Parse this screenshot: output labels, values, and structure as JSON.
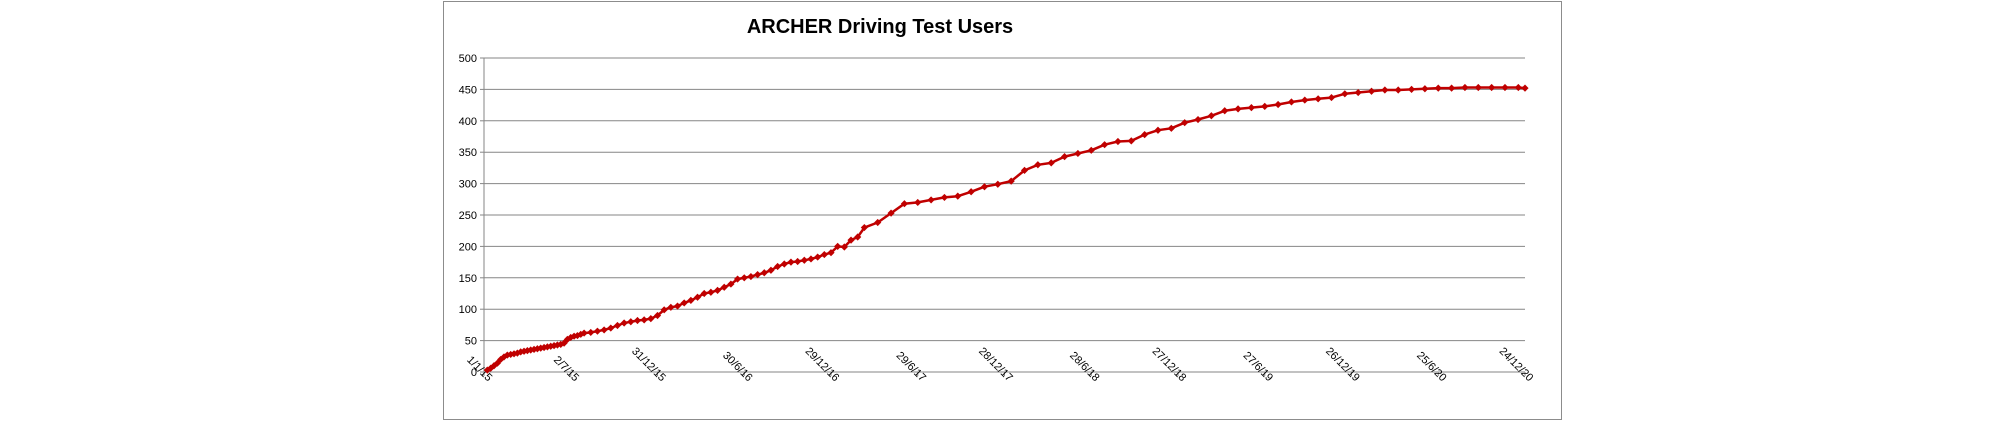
{
  "chart_data": {
    "type": "line",
    "title": "ARCHER Driving Test Users",
    "xlabel": "",
    "ylabel": "",
    "ylim": [
      0,
      500
    ],
    "yticks": [
      0,
      50,
      100,
      150,
      200,
      250,
      300,
      350,
      400,
      450,
      500
    ],
    "xlim": [
      "2015-01-01",
      "2020-12-24"
    ],
    "xtick_labels": [
      "1/1/15",
      "2/7/15",
      "31/12/15",
      "30/6/16",
      "29/12/16",
      "29/6/17",
      "28/12/17",
      "28/6/18",
      "27/12/18",
      "27/6/19",
      "26/12/19",
      "25/6/20",
      "24/12/20"
    ],
    "xtick_dates": [
      "2015-01-01",
      "2015-07-02",
      "2015-12-31",
      "2016-06-30",
      "2016-12-29",
      "2017-06-29",
      "2017-12-28",
      "2018-06-28",
      "2018-12-27",
      "2019-06-27",
      "2019-12-26",
      "2020-06-25",
      "2020-12-24"
    ],
    "grid": true,
    "legend": "none",
    "series_color": "#c00000",
    "series": [
      {
        "x": [
          "2015-01-08",
          "2015-01-15",
          "2015-01-22",
          "2015-01-29",
          "2015-02-05",
          "2015-02-12",
          "2015-02-19",
          "2015-02-26",
          "2015-03-05",
          "2015-03-12",
          "2015-03-19",
          "2015-03-26",
          "2015-04-02",
          "2015-04-09",
          "2015-04-16",
          "2015-04-23",
          "2015-04-30",
          "2015-05-07",
          "2015-05-14",
          "2015-05-21",
          "2015-05-28",
          "2015-06-04",
          "2015-06-11",
          "2015-06-18",
          "2015-06-25",
          "2015-07-02",
          "2015-07-09",
          "2015-07-16",
          "2015-07-23",
          "2015-07-30",
          "2015-08-13",
          "2015-08-27",
          "2015-09-10",
          "2015-09-24",
          "2015-10-08",
          "2015-10-22",
          "2015-11-05",
          "2015-11-19",
          "2015-12-03",
          "2015-12-17",
          "2015-12-31",
          "2016-01-14",
          "2016-01-28",
          "2016-02-11",
          "2016-02-25",
          "2016-03-10",
          "2016-03-24",
          "2016-04-07",
          "2016-04-21",
          "2016-05-05",
          "2016-05-19",
          "2016-06-02",
          "2016-06-16",
          "2016-06-30",
          "2016-07-14",
          "2016-07-28",
          "2016-08-11",
          "2016-08-25",
          "2016-09-08",
          "2016-09-22",
          "2016-10-06",
          "2016-10-20",
          "2016-11-03",
          "2016-11-17",
          "2016-12-01",
          "2016-12-15",
          "2016-12-29",
          "2017-01-12",
          "2017-01-26",
          "2017-02-09",
          "2017-02-23",
          "2017-03-09",
          "2017-04-06",
          "2017-05-04",
          "2017-06-01",
          "2017-06-29",
          "2017-07-27",
          "2017-08-24",
          "2017-09-21",
          "2017-10-19",
          "2017-11-16",
          "2017-12-14",
          "2018-01-11",
          "2018-02-08",
          "2018-03-08",
          "2018-04-05",
          "2018-05-03",
          "2018-05-31",
          "2018-06-28",
          "2018-07-26",
          "2018-08-23",
          "2018-09-20",
          "2018-10-18",
          "2018-11-15",
          "2018-12-13",
          "2019-01-10",
          "2019-02-07",
          "2019-03-07",
          "2019-04-04",
          "2019-05-02",
          "2019-05-30",
          "2019-06-27",
          "2019-07-25",
          "2019-08-22",
          "2019-09-19",
          "2019-10-17",
          "2019-11-14",
          "2019-12-12",
          "2020-01-09",
          "2020-02-06",
          "2020-03-05",
          "2020-04-02",
          "2020-04-30",
          "2020-05-28",
          "2020-06-25",
          "2020-07-23",
          "2020-08-20",
          "2020-09-17",
          "2020-10-15",
          "2020-11-12",
          "2020-12-10",
          "2020-12-24"
        ],
        "y": [
          3,
          6,
          10,
          14,
          20,
          24,
          27,
          28,
          29,
          30,
          32,
          33,
          34,
          35,
          36,
          37,
          38,
          39,
          40,
          41,
          42,
          43,
          44,
          46,
          52,
          55,
          57,
          58,
          60,
          62,
          63,
          65,
          67,
          70,
          74,
          78,
          80,
          82,
          83,
          85,
          90,
          99,
          103,
          105,
          110,
          114,
          119,
          125,
          127,
          130,
          135,
          140,
          148,
          150,
          152,
          155,
          158,
          162,
          168,
          172,
          175,
          176,
          178,
          180,
          183,
          187,
          190,
          200,
          199,
          210,
          215,
          230,
          238,
          253,
          268,
          270,
          274,
          278,
          280,
          287,
          295,
          299,
          304,
          321,
          330,
          333,
          343,
          348,
          353,
          362,
          367,
          368,
          378,
          385,
          388,
          397,
          402,
          408,
          416,
          419,
          421,
          423,
          426,
          430,
          433,
          435,
          437,
          443,
          445,
          447,
          449,
          449,
          450,
          451,
          452,
          452,
          453,
          453,
          453,
          453,
          453,
          452
        ]
      }
    ]
  }
}
